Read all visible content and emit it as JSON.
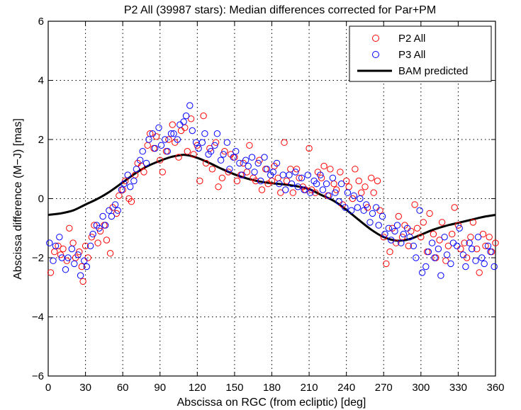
{
  "chart_data": {
    "type": "scatter",
    "title": "P2 All (39987 stars): Median differences corrected for Par+PM",
    "xlabel": "Abscissa on RGC (from ecliptic) [deg]",
    "ylabel": "Abscissa difference (M−J) [mas]",
    "xlim": [
      0,
      360
    ],
    "ylim": [
      -6,
      6
    ],
    "xticks": [
      "0",
      "30",
      "60",
      "90",
      "120",
      "150",
      "180",
      "210",
      "240",
      "270",
      "300",
      "330",
      "360"
    ],
    "yticks": [
      "-6",
      "-4",
      "-2",
      "0",
      "2",
      "4",
      "6"
    ],
    "grid": true,
    "legend_position": "top-right",
    "legend": [
      {
        "name": "P2 All",
        "color": "#ff0000",
        "marker": "circle"
      },
      {
        "name": "P3 All",
        "color": "#0000ff",
        "marker": "circle"
      },
      {
        "name": "BAM predicted",
        "color": "#000000",
        "marker": "line"
      }
    ],
    "series": [
      {
        "name": "P2 All",
        "color": "#ff0000",
        "x": [
          2,
          5,
          8,
          10,
          12,
          15,
          17,
          20,
          22,
          25,
          27,
          28,
          30,
          32,
          35,
          37,
          40,
          42,
          45,
          47,
          50,
          52,
          55,
          57,
          60,
          62,
          65,
          67,
          70,
          72,
          75,
          77,
          80,
          82,
          85,
          87,
          90,
          92,
          95,
          97,
          100,
          102,
          105,
          107,
          110,
          112,
          115,
          117,
          120,
          122,
          125,
          127,
          130,
          132,
          135,
          137,
          140,
          142,
          145,
          147,
          150,
          152,
          155,
          157,
          160,
          162,
          165,
          167,
          170,
          172,
          175,
          177,
          180,
          182,
          185,
          187,
          190,
          192,
          195,
          197,
          200,
          202,
          205,
          207,
          210,
          212,
          215,
          217,
          220,
          222,
          225,
          227,
          230,
          232,
          235,
          237,
          240,
          242,
          245,
          247,
          250,
          252,
          255,
          257,
          260,
          262,
          265,
          267,
          270,
          272,
          275,
          277,
          280,
          282,
          285,
          287,
          290,
          292,
          295,
          297,
          300,
          302,
          305,
          307,
          310,
          312,
          315,
          317,
          320,
          322,
          325,
          327,
          330,
          332,
          335,
          337,
          340,
          342,
          345,
          347,
          350,
          352,
          355,
          357,
          360
        ],
        "values": [
          -2.5,
          -1.8,
          -1.6,
          -1.9,
          -1.7,
          -2.1,
          -1.0,
          -1.5,
          -2.0,
          -1.8,
          -2.3,
          -2.8,
          -1.6,
          -2.0,
          -1.3,
          -0.9,
          -1.5,
          -1.1,
          -0.9,
          -1.4,
          -1.85,
          -0.3,
          -0.5,
          0.1,
          0.3,
          0.6,
          0.0,
          -0.1,
          0.8,
          1.2,
          1.1,
          0.9,
          1.8,
          2.2,
          1.7,
          2.1,
          1.3,
          0.9,
          1.6,
          2.0,
          2.5,
          1.9,
          1.4,
          2.3,
          2.4,
          1.6,
          2.7,
          1.5,
          1.8,
          0.6,
          2.8,
          1.2,
          1.7,
          1.0,
          1.9,
          0.4,
          0.7,
          1.6,
          0.9,
          1.5,
          1.4,
          0.6,
          0.8,
          1.2,
          0.9,
          1.8,
          0.7,
          0.6,
          1.3,
          0.3,
          1.0,
          0.5,
          0.6,
          1.1,
          0.7,
          0.2,
          1.9,
          0.6,
          1.0,
          0.2,
          1.0,
          0.7,
          0.4,
          0.3,
          1.7,
          0.3,
          0.2,
          0.9,
          0.7,
          1.1,
          0.1,
          1.0,
          0.5,
          0.3,
          0.9,
          -0.2,
          0.6,
          0.4,
          0.0,
          1.0,
          0.6,
          0.2,
          0.4,
          -0.3,
          0.7,
          0.2,
          0.6,
          -0.4,
          -1.3,
          -2.2,
          -1.8,
          -1.0,
          -1.5,
          -0.6,
          -1.3,
          -0.9,
          -1.6,
          -1.1,
          -0.2,
          -1.0,
          -1.3,
          -0.8,
          -1.8,
          -0.5,
          -1.2,
          -2.0,
          -1.4,
          -0.8,
          -2.1,
          -1.6,
          -1.2,
          -0.3,
          -0.9,
          -1.7,
          -1.5,
          -2.0,
          -1.3,
          -0.8,
          -1.7,
          -2.5,
          -1.2,
          -1.6,
          -1.3,
          -1.8,
          -1.5
        ]
      },
      {
        "name": "P3 All",
        "color": "#0000ff",
        "x": [
          1,
          4,
          6,
          9,
          11,
          14,
          16,
          19,
          21,
          24,
          26,
          29,
          31,
          34,
          36,
          39,
          41,
          44,
          46,
          49,
          51,
          54,
          56,
          59,
          61,
          64,
          66,
          69,
          71,
          74,
          76,
          79,
          81,
          84,
          86,
          89,
          91,
          94,
          96,
          99,
          101,
          104,
          106,
          109,
          111,
          114,
          116,
          119,
          121,
          124,
          126,
          129,
          131,
          134,
          136,
          139,
          141,
          144,
          146,
          149,
          151,
          154,
          156,
          159,
          161,
          164,
          166,
          169,
          171,
          174,
          176,
          179,
          181,
          184,
          186,
          189,
          191,
          194,
          196,
          199,
          201,
          204,
          206,
          209,
          211,
          214,
          216,
          219,
          221,
          224,
          226,
          229,
          231,
          234,
          236,
          239,
          241,
          244,
          246,
          249,
          251,
          254,
          256,
          259,
          261,
          264,
          266,
          269,
          271,
          274,
          276,
          279,
          281,
          284,
          286,
          289,
          291,
          294,
          296,
          299,
          301,
          304,
          306,
          309,
          311,
          314,
          316,
          319,
          321,
          324,
          326,
          329,
          331,
          334,
          336,
          339,
          341,
          344,
          346,
          349,
          351,
          354,
          356,
          359
        ],
        "values": [
          -1.5,
          -2.1,
          -1.6,
          -1.3,
          -2.0,
          -2.4,
          -2.0,
          -1.7,
          -2.2,
          -1.9,
          -2.6,
          -2.1,
          -2.3,
          -1.6,
          -1.2,
          -0.9,
          -1.0,
          -0.6,
          -0.9,
          -0.4,
          -0.6,
          -0.2,
          -0.4,
          0.3,
          0.5,
          0.8,
          0.4,
          0.6,
          1.0,
          1.3,
          1.6,
          1.2,
          2.0,
          2.2,
          1.7,
          2.4,
          1.8,
          2.0,
          1.6,
          2.2,
          2.2,
          2.0,
          2.5,
          2.6,
          2.8,
          3.15,
          2.3,
          1.9,
          1.7,
          1.9,
          2.2,
          1.5,
          1.6,
          1.8,
          2.2,
          1.3,
          1.5,
          1.9,
          1.0,
          1.4,
          1.6,
          1.2,
          0.8,
          1.3,
          1.1,
          1.4,
          0.9,
          1.2,
          0.6,
          1.4,
          1.0,
          0.8,
          0.9,
          1.2,
          0.5,
          0.8,
          0.3,
          0.8,
          0.5,
          0.9,
          0.4,
          0.7,
          0.3,
          0.8,
          0.2,
          0.6,
          0.5,
          0.8,
          0.3,
          0.5,
          0.1,
          0.7,
          0.2,
          -0.1,
          0.5,
          -0.3,
          0.2,
          -0.4,
          0.1,
          -0.3,
          0.0,
          -0.4,
          -0.2,
          -0.8,
          -0.5,
          -0.3,
          -0.9,
          -0.6,
          -1.2,
          -1.0,
          -1.4,
          -1.1,
          -0.9,
          -1.5,
          -1.2,
          -1.0,
          -1.3,
          -1.6,
          -2.0,
          -0.4,
          -2.5,
          -2.3,
          -1.8,
          -1.5,
          -2.0,
          -1.7,
          -2.6,
          -1.3,
          -1.9,
          -2.2,
          -1.5,
          -1.6,
          -1.0,
          -1.9,
          -2.3,
          -1.5,
          -1.7,
          -2.1,
          -1.3,
          -2.0,
          -2.2,
          -1.6,
          -1.8,
          -2.3
        ]
      },
      {
        "name": "BAM predicted",
        "color": "#000000",
        "style": "line",
        "x": [
          0,
          10,
          20,
          30,
          40,
          50,
          60,
          70,
          80,
          90,
          100,
          110,
          120,
          130,
          140,
          150,
          160,
          170,
          180,
          190,
          200,
          210,
          220,
          230,
          240,
          250,
          260,
          270,
          280,
          290,
          300,
          310,
          320,
          330,
          340,
          350,
          360
        ],
        "values": [
          -0.55,
          -0.5,
          -0.4,
          -0.2,
          0.0,
          0.25,
          0.55,
          0.85,
          1.1,
          1.28,
          1.42,
          1.48,
          1.38,
          1.2,
          1.0,
          0.82,
          0.68,
          0.58,
          0.52,
          0.48,
          0.42,
          0.32,
          0.12,
          -0.08,
          -0.38,
          -0.72,
          -1.05,
          -1.3,
          -1.42,
          -1.38,
          -1.22,
          -1.05,
          -0.92,
          -0.82,
          -0.72,
          -0.62,
          -0.55
        ]
      }
    ]
  }
}
